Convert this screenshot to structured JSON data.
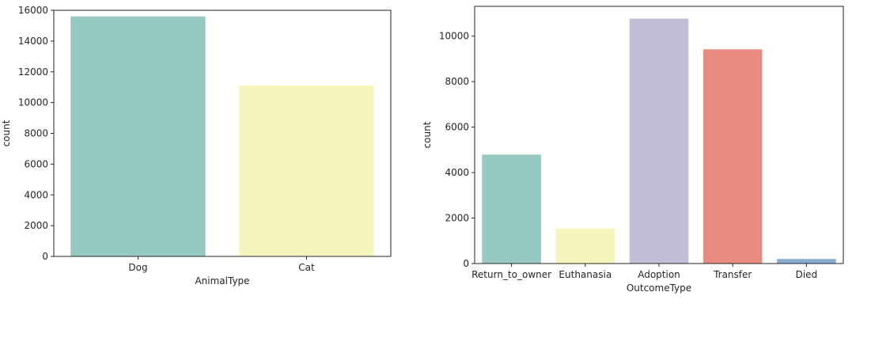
{
  "chart_data": [
    {
      "type": "bar",
      "categories": [
        "Dog",
        "Cat"
      ],
      "values": [
        15600,
        11130
      ],
      "colors": [
        "#96c9c2",
        "#f5f6bd"
      ],
      "xlabel": "AnimalType",
      "ylabel": "count",
      "ylim": [
        0,
        16000
      ],
      "yticks": [
        0,
        2000,
        4000,
        6000,
        8000,
        10000,
        12000,
        14000,
        16000
      ],
      "grid": false
    },
    {
      "type": "bar",
      "categories": [
        "Return_to_owner",
        "Euthanasia",
        "Adoption",
        "Transfer",
        "Died"
      ],
      "values": [
        4790,
        1550,
        10770,
        9420,
        200
      ],
      "colors": [
        "#96c9c2",
        "#f5f6bd",
        "#c1bdd6",
        "#e98c80",
        "#86acd0"
      ],
      "xlabel": "OutcomeType",
      "ylabel": "count",
      "ylim": [
        0,
        11310
      ],
      "yticks": [
        0,
        2000,
        4000,
        6000,
        8000,
        10000
      ],
      "grid": false
    }
  ]
}
